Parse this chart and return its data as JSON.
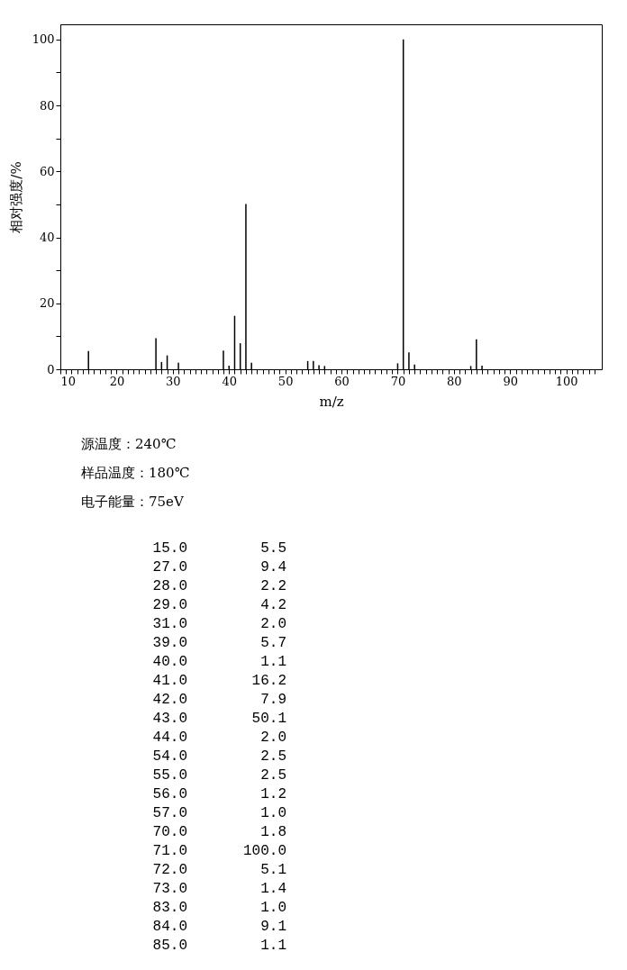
{
  "chart_data": [
    {
      "type": "bar",
      "xlabel": "m/z",
      "ylabel": "相对强度/%",
      "color": "#000000",
      "x": [
        15,
        27,
        28,
        29,
        31,
        39,
        40,
        41,
        42,
        43,
        44,
        54,
        55,
        56,
        57,
        70,
        71,
        72,
        73,
        83,
        84,
        85
      ],
      "values": [
        5.5,
        9.4,
        2.2,
        4.2,
        2.0,
        5.7,
        1.1,
        16.2,
        7.9,
        50.1,
        2.0,
        2.5,
        2.5,
        1.2,
        1.0,
        1.8,
        100.0,
        5.1,
        1.4,
        1.0,
        9.1,
        1.1
      ],
      "xlim": [
        10,
        106.3
      ],
      "xticks": [
        10,
        {
          "value": 11,
          "label": null
        },
        {
          "value": 12,
          "label": null
        },
        {
          "value": 13,
          "label": null
        },
        {
          "value": 14,
          "label": null
        },
        {
          "value": 15,
          "label": null
        },
        {
          "value": 16,
          "label": null
        },
        {
          "value": 17,
          "label": null
        },
        {
          "value": 18,
          "label": null
        },
        {
          "value": 19,
          "label": null
        },
        20,
        {
          "value": 21,
          "label": null
        },
        {
          "value": 22,
          "label": null
        },
        {
          "value": 23,
          "label": null
        },
        {
          "value": 24,
          "label": null
        },
        {
          "value": 25,
          "label": null
        },
        {
          "value": 26,
          "label": null
        },
        {
          "value": 27,
          "label": null
        },
        {
          "value": 28,
          "label": null
        },
        {
          "value": 29,
          "label": null
        },
        30,
        {
          "value": 31,
          "label": null
        },
        {
          "value": 32,
          "label": null
        },
        {
          "value": 33,
          "label": null
        },
        {
          "value": 34,
          "label": null
        },
        {
          "value": 35,
          "label": null
        },
        {
          "value": 36,
          "label": null
        },
        {
          "value": 37,
          "label": null
        },
        {
          "value": 38,
          "label": null
        },
        {
          "value": 39,
          "label": null
        },
        40,
        {
          "value": 41,
          "label": null
        },
        {
          "value": 42,
          "label": null
        },
        {
          "value": 43,
          "label": null
        },
        {
          "value": 44,
          "label": null
        },
        {
          "value": 45,
          "label": null
        },
        {
          "value": 46,
          "label": null
        },
        {
          "value": 47,
          "label": null
        },
        {
          "value": 48,
          "label": null
        },
        {
          "value": 49,
          "label": null
        },
        50,
        {
          "value": 51,
          "label": null
        },
        {
          "value": 52,
          "label": null
        },
        {
          "value": 53,
          "label": null
        },
        {
          "value": 54,
          "label": null
        },
        {
          "value": 55,
          "label": null
        },
        {
          "value": 56,
          "label": null
        },
        {
          "value": 57,
          "label": null
        },
        {
          "value": 58,
          "label": null
        },
        {
          "value": 59,
          "label": null
        },
        60,
        {
          "value": 61,
          "label": null
        },
        {
          "value": 62,
          "label": null
        },
        {
          "value": 63,
          "label": null
        },
        {
          "value": 64,
          "label": null
        },
        {
          "value": 65,
          "label": null
        },
        {
          "value": 66,
          "label": null
        },
        {
          "value": 67,
          "label": null
        },
        {
          "value": 68,
          "label": null
        },
        {
          "value": 69,
          "label": null
        },
        70,
        {
          "value": 71,
          "label": null
        },
        {
          "value": 72,
          "label": null
        },
        {
          "value": 73,
          "label": null
        },
        {
          "value": 74,
          "label": null
        },
        {
          "value": 75,
          "label": null
        },
        {
          "value": 76,
          "label": null
        },
        {
          "value": 77,
          "label": null
        },
        {
          "value": 78,
          "label": null
        },
        {
          "value": 79,
          "label": null
        },
        80,
        {
          "value": 81,
          "label": null
        },
        {
          "value": 82,
          "label": null
        },
        {
          "value": 83,
          "label": null
        },
        {
          "value": 84,
          "label": null
        },
        {
          "value": 85,
          "label": null
        },
        {
          "value": 86,
          "label": null
        },
        {
          "value": 87,
          "label": null
        },
        {
          "value": 88,
          "label": null
        },
        {
          "value": 89,
          "label": null
        },
        90,
        {
          "value": 91,
          "label": null
        },
        {
          "value": 92,
          "label": null
        },
        {
          "value": 93,
          "label": null
        },
        {
          "value": 94,
          "label": null
        },
        {
          "value": 95,
          "label": null
        },
        {
          "value": 96,
          "label": null
        },
        {
          "value": 97,
          "label": null
        },
        {
          "value": 98,
          "label": null
        },
        {
          "value": 99,
          "label": null
        },
        100,
        {
          "value": 101,
          "label": null
        },
        {
          "value": 102,
          "label": null
        },
        {
          "value": 103,
          "label": null
        },
        {
          "value": 104,
          "label": null
        },
        {
          "value": 105,
          "label": null
        }
      ],
      "ylim": [
        0,
        104.6
      ],
      "yticks": [
        0,
        {
          "value": 10,
          "label": null
        },
        20,
        {
          "value": 30,
          "label": null
        },
        40,
        {
          "value": 50,
          "label": null
        },
        60,
        {
          "value": 70,
          "label": null
        },
        80,
        {
          "value": 90,
          "label": null
        },
        100
      ],
      "annotations": [
        "源温度：240℃",
        "样品温度：180℃",
        "电子能量：75eV"
      ]
    },
    {
      "type": "other",
      "categories": [
        "15.0",
        "27.0",
        "28.0",
        "29.0",
        "31.0",
        "39.0",
        "40.0",
        "41.0",
        "42.0",
        "43.0",
        "44.0",
        "54.0",
        "55.0",
        "56.0",
        "57.0",
        "70.0",
        "71.0",
        "72.0",
        "73.0",
        "83.0",
        "84.0",
        "85.0"
      ],
      "value_labels": [
        "5.5",
        "9.4",
        "2.2",
        "4.2",
        "2.0",
        "5.7",
        "1.1",
        "16.2",
        "7.9",
        "50.1",
        "2.0",
        "2.5",
        "2.5",
        "1.2",
        "1.0",
        "1.8",
        "100.0",
        "5.1",
        "1.4",
        "1.0",
        "9.1",
        "1.1"
      ]
    }
  ]
}
